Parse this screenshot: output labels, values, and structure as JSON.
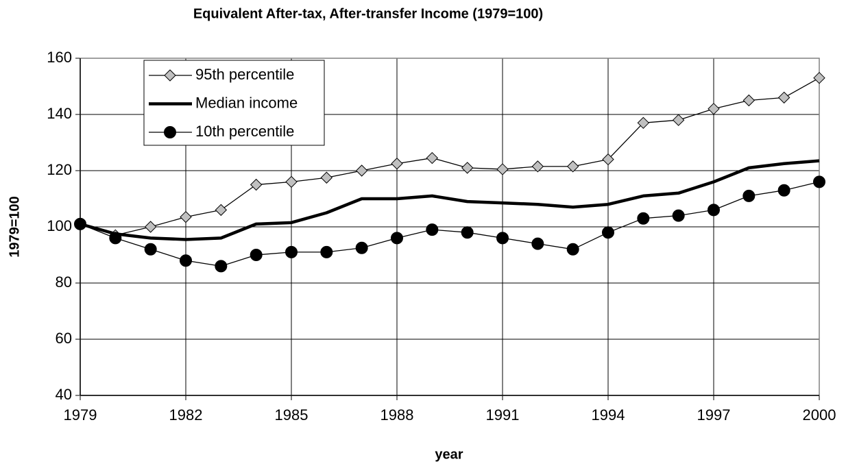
{
  "chart_data": {
    "type": "line",
    "title": "Equivalent After-tax, After-transfer Income (1979=100)",
    "x_label": "year",
    "y_label": "1979=100",
    "x": [
      1979,
      1980,
      1981,
      1982,
      1983,
      1984,
      1985,
      1986,
      1987,
      1988,
      1989,
      1990,
      1991,
      1992,
      1993,
      1994,
      1995,
      1996,
      1997,
      1998,
      1999,
      2000
    ],
    "series": [
      {
        "name": "95th percentile",
        "color": "#c0c0c0",
        "marker": "diamond",
        "values": [
          101,
          97,
          100,
          103.5,
          106,
          115,
          116,
          117.5,
          120,
          122.5,
          124.5,
          121,
          120.5,
          121.5,
          121.5,
          124,
          137,
          138,
          142,
          145,
          146,
          153
        ]
      },
      {
        "name": "Median income",
        "color": "#000000",
        "marker": "none",
        "values": [
          101,
          97.5,
          96,
          95.5,
          96,
          101,
          101.5,
          105,
          110,
          110,
          111,
          109,
          108.5,
          108,
          107,
          108,
          111,
          112,
          116,
          121,
          122.5,
          123.5
        ]
      },
      {
        "name": "10th percentile",
        "color": "#000000",
        "marker": "circle",
        "values": [
          101,
          96,
          92,
          88,
          86,
          90,
          91,
          91,
          92.5,
          96,
          99,
          98,
          96,
          94,
          92,
          98,
          103,
          104,
          106,
          111,
          113,
          116
        ]
      }
    ],
    "xlim": [
      1979,
      2000
    ],
    "xticks": [
      1979,
      1982,
      1985,
      1988,
      1991,
      1994,
      1997,
      2000
    ],
    "ylim": [
      40,
      160
    ],
    "yticks": [
      40,
      60,
      80,
      100,
      120,
      140,
      160
    ],
    "grid": true,
    "legend": "upper left"
  }
}
